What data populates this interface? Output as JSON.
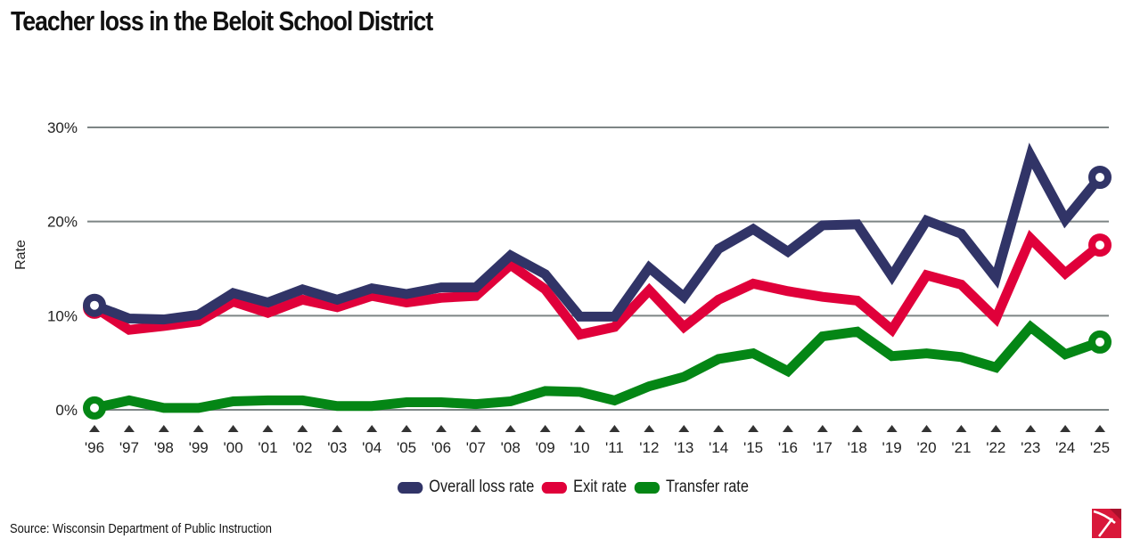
{
  "chart_data": {
    "type": "line",
    "title": "Teacher loss in the Beloit School District",
    "xlabel": "",
    "ylabel": "Rate",
    "ylim": [
      0,
      30
    ],
    "yticks": [
      0,
      10,
      20,
      30
    ],
    "ytick_labels": [
      "0%",
      "10%",
      "20%",
      "30%"
    ],
    "grid": true,
    "legend_position": "bottom-center",
    "categories": [
      "'96",
      "'97",
      "'98",
      "'99",
      "'00",
      "'01",
      "'02",
      "'03",
      "'04",
      "'05",
      "'06",
      "'07",
      "'08",
      "'09",
      "'10",
      "'11",
      "'12",
      "'13",
      "'14",
      "'15",
      "'16",
      "'17",
      "'18",
      "'19",
      "'20",
      "'21",
      "'22",
      "'23",
      "'24",
      "'25"
    ],
    "series": [
      {
        "name": "Overall loss rate",
        "color": "#313467",
        "values": [
          11.1,
          9.7,
          9.6,
          10.1,
          12.4,
          11.4,
          12.8,
          11.7,
          12.9,
          12.3,
          13.0,
          13.0,
          16.4,
          14.4,
          9.9,
          9.9,
          15.1,
          12.0,
          17.1,
          19.2,
          16.8,
          19.6,
          19.7,
          14.2,
          20.1,
          18.7,
          14.0,
          27.0,
          20.2,
          24.7
        ]
      },
      {
        "name": "Exit rate",
        "color": "#e0003a",
        "values": [
          10.9,
          8.5,
          8.9,
          9.4,
          11.5,
          10.3,
          11.7,
          10.9,
          12.1,
          11.4,
          11.9,
          12.1,
          15.4,
          12.8,
          8.0,
          8.8,
          12.7,
          8.8,
          11.7,
          13.4,
          12.6,
          12.0,
          11.6,
          8.5,
          14.3,
          13.3,
          9.7,
          18.2,
          14.5,
          17.5
        ]
      },
      {
        "name": "Transfer rate",
        "color": "#048615",
        "values": [
          0.2,
          1.0,
          0.2,
          0.2,
          0.9,
          1.0,
          1.0,
          0.4,
          0.4,
          0.8,
          0.8,
          0.6,
          0.9,
          2.0,
          1.9,
          1.0,
          2.5,
          3.5,
          5.4,
          6.0,
          4.1,
          7.8,
          8.3,
          5.7,
          6.0,
          5.6,
          4.5,
          8.8,
          5.9,
          7.2
        ]
      }
    ]
  },
  "footer": {
    "source": "Source: Wisconsin Department of Public Instruction"
  },
  "colors": {
    "gridline": "#7d8585",
    "tick_marker": "#333333",
    "logo": "#d9183a"
  },
  "icons": {
    "logo": "pickaxe-logo-icon"
  }
}
